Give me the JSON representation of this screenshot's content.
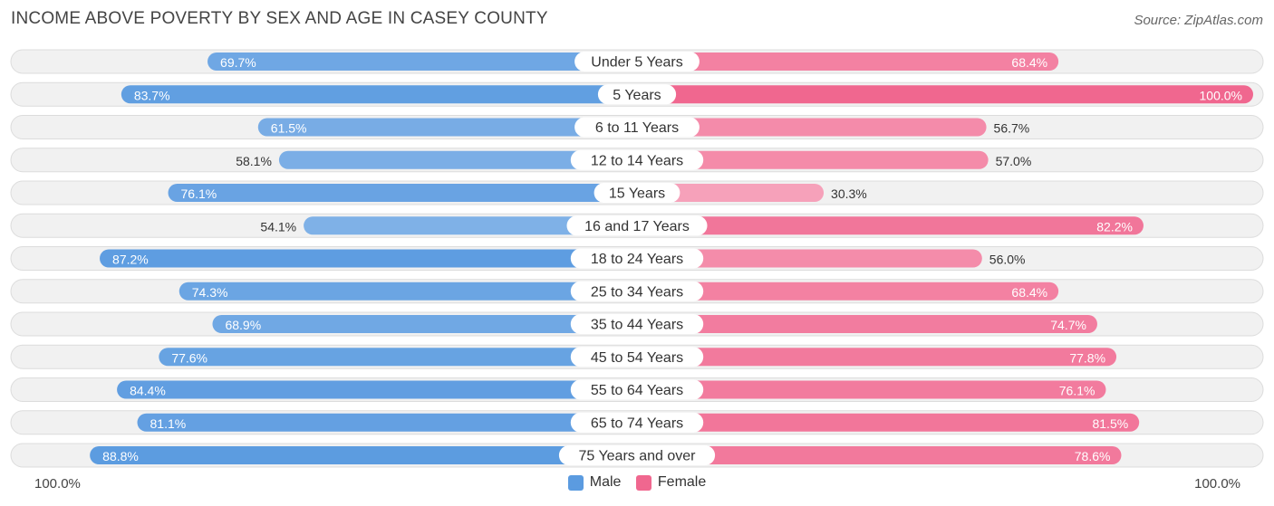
{
  "header": {
    "title": "INCOME ABOVE POVERTY BY SEX AND AGE IN CASEY COUNTY",
    "source": "Source: ZipAtlas.com"
  },
  "legend": {
    "male_label": "Male",
    "female_label": "Female",
    "male_color": "#5b9be0",
    "female_color": "#f0678f"
  },
  "axis": {
    "left_label": "100.0%",
    "right_label": "100.0%"
  },
  "chart_data": {
    "type": "bar",
    "orientation": "horizontal-diverging",
    "title": "INCOME ABOVE POVERTY BY SEX AND AGE IN CASEY COUNTY",
    "categories": [
      "Under 5 Years",
      "5 Years",
      "6 to 11 Years",
      "12 to 14 Years",
      "15 Years",
      "16 and 17 Years",
      "18 to 24 Years",
      "25 to 34 Years",
      "35 to 44 Years",
      "45 to 54 Years",
      "55 to 64 Years",
      "65 to 74 Years",
      "75 Years and over"
    ],
    "series": [
      {
        "name": "Male",
        "values": [
          69.7,
          83.7,
          61.5,
          58.1,
          76.1,
          54.1,
          87.2,
          74.3,
          68.9,
          77.6,
          84.4,
          81.1,
          88.8
        ],
        "labels": [
          "69.7%",
          "83.7%",
          "61.5%",
          "58.1%",
          "76.1%",
          "54.1%",
          "87.2%",
          "74.3%",
          "68.9%",
          "77.6%",
          "84.4%",
          "81.1%",
          "88.8%"
        ]
      },
      {
        "name": "Female",
        "values": [
          68.4,
          100.0,
          56.7,
          57.0,
          30.3,
          82.2,
          56.0,
          68.4,
          74.7,
          77.8,
          76.1,
          81.5,
          78.6
        ],
        "labels": [
          "68.4%",
          "100.0%",
          "56.7%",
          "57.0%",
          "30.3%",
          "82.2%",
          "56.0%",
          "68.4%",
          "74.7%",
          "77.8%",
          "76.1%",
          "81.5%",
          "78.6%"
        ]
      }
    ],
    "xlim": [
      -100,
      100
    ],
    "xlabel_left": "100.0%",
    "xlabel_right": "100.0%",
    "legend_position": "bottom-center"
  }
}
